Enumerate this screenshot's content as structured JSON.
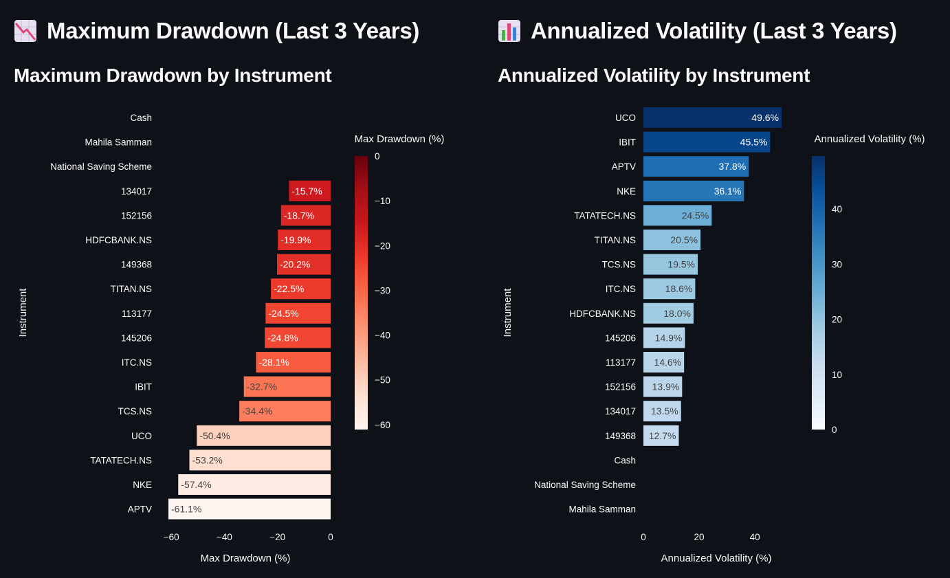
{
  "sections": [
    {
      "title": "Maximum Drawdown (Last 3 Years)",
      "icon": "chart-decreasing-icon",
      "subtitle": "Maximum Drawdown by Instrument"
    },
    {
      "title": "Annualized Volatility (Last 3 Years)",
      "icon": "bar-chart-icon",
      "subtitle": "Annualized Volatility by Instrument"
    }
  ],
  "chart_data": [
    {
      "type": "bar",
      "orientation": "horizontal",
      "title": "Maximum Drawdown by Instrument",
      "xlabel": "Max Drawdown (%)",
      "ylabel": "Instrument",
      "categories": [
        "Cash",
        "Mahila Samman",
        "National Saving Scheme",
        "134017",
        "152156",
        "HDFCBANK.NS",
        "149368",
        "TITAN.NS",
        "113177",
        "145206",
        "ITC.NS",
        "IBIT",
        "TCS.NS",
        "UCO",
        "TATATECH.NS",
        "NKE",
        "APTV"
      ],
      "values": [
        null,
        null,
        null,
        -15.7,
        -18.7,
        -19.9,
        -20.2,
        -22.5,
        -24.5,
        -24.8,
        -28.1,
        -32.7,
        -34.4,
        -50.4,
        -53.2,
        -57.4,
        -61.1
      ],
      "labels": [
        "",
        "",
        "",
        "-15.7%",
        "-18.7%",
        "-19.9%",
        "-20.2%",
        "-22.5%",
        "-24.5%",
        "-24.8%",
        "-28.1%",
        "-32.7%",
        "-34.4%",
        "-50.4%",
        "-53.2%",
        "-57.4%",
        "-61.1%"
      ],
      "xlim": [
        -61.1,
        0
      ],
      "xticks": [
        -60,
        -40,
        -20,
        0
      ],
      "xtick_labels": [
        "−60",
        "−40",
        "−20",
        "0"
      ],
      "colorscale": "Reds",
      "colorbar": {
        "title": "Max Drawdown (%)",
        "range": [
          -61.1,
          0
        ],
        "ticks": [
          0,
          -10,
          -20,
          -30,
          -40,
          -50,
          -60
        ],
        "tick_labels": [
          "0",
          "−10",
          "−20",
          "−30",
          "−40",
          "−50",
          "−60"
        ]
      },
      "text_position": "inside-end"
    },
    {
      "type": "bar",
      "orientation": "horizontal",
      "title": "Annualized Volatility by Instrument",
      "xlabel": "Annualized Volatility (%)",
      "ylabel": "Instrument",
      "categories": [
        "UCO",
        "IBIT",
        "APTV",
        "NKE",
        "TATATECH.NS",
        "TITAN.NS",
        "TCS.NS",
        "ITC.NS",
        "HDFCBANK.NS",
        "145206",
        "113177",
        "152156",
        "134017",
        "149368",
        "Cash",
        "National Saving Scheme",
        "Mahila Samman"
      ],
      "values": [
        49.6,
        45.5,
        37.8,
        36.1,
        24.5,
        20.5,
        19.5,
        18.6,
        18.0,
        14.9,
        14.6,
        13.9,
        13.5,
        12.7,
        null,
        null,
        null
      ],
      "labels": [
        "49.6%",
        "45.5%",
        "37.8%",
        "36.1%",
        "24.5%",
        "20.5%",
        "19.5%",
        "18.6%",
        "18.0%",
        "14.9%",
        "14.6%",
        "13.9%",
        "13.5%",
        "12.7%",
        "",
        "",
        ""
      ],
      "xlim": [
        0,
        49.6
      ],
      "xticks": [
        0,
        20,
        40
      ],
      "xtick_labels": [
        "0",
        "20",
        "40"
      ],
      "colorscale": "Blues",
      "colorbar": {
        "title": "Annualized Volatility (%)",
        "range": [
          0,
          49.6
        ],
        "ticks": [
          0,
          10,
          20,
          30,
          40
        ],
        "tick_labels": [
          "0",
          "10",
          "20",
          "30",
          "40"
        ]
      },
      "text_position": "inside-end"
    }
  ],
  "colors": {
    "background": "#0e1117",
    "text": "#fafafa"
  }
}
